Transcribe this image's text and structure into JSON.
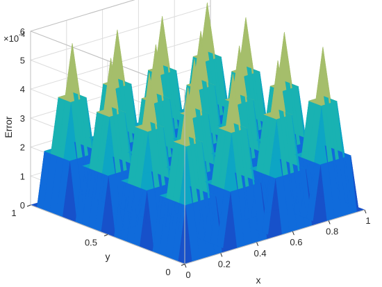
{
  "chart_data": {
    "type": "surface",
    "title": "",
    "xlabel": "x",
    "ylabel": "y",
    "zlabel": "Error",
    "z_exponent_label": "×10",
    "z_exponent_power": "-4",
    "xlim": [
      0,
      1
    ],
    "ylim": [
      0,
      1
    ],
    "zlim": [
      0,
      6
    ],
    "x_ticks": [
      "0",
      "0.2",
      "0.4",
      "0.6",
      "0.8",
      "1"
    ],
    "y_ticks": [
      "0",
      "0.5",
      "1"
    ],
    "z_ticks": [
      "0",
      "1",
      "2",
      "3",
      "4",
      "5",
      "6"
    ],
    "grid": true,
    "colormap": "parula",
    "peaks": {
      "grid_count": 4,
      "centers": [
        0.125,
        0.375,
        0.625,
        0.875
      ],
      "peak_value_e4": 5.6,
      "base_value_e4": 0
    }
  }
}
